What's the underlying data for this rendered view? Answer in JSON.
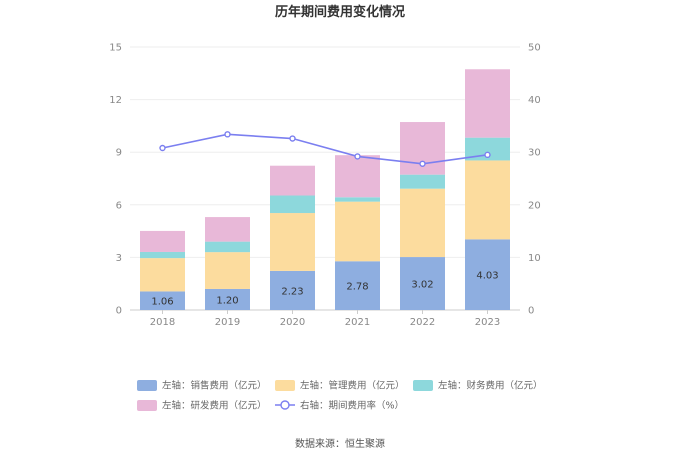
{
  "chart_data": {
    "type": "bar",
    "title": "历年期间费用变化情况",
    "categories": [
      "2018",
      "2019",
      "2020",
      "2021",
      "2022",
      "2023"
    ],
    "stacked": true,
    "left_axis": {
      "ylim": [
        0,
        15
      ],
      "ticks": [
        "0",
        "3",
        "6",
        "9",
        "12",
        "15"
      ]
    },
    "right_axis": {
      "ylim": [
        0,
        50
      ],
      "ticks": [
        "0",
        "10",
        "20",
        "30",
        "40",
        "50"
      ]
    },
    "series": [
      {
        "name": "左轴：销售费用（亿元）",
        "axis": "left",
        "kind": "bar",
        "color": "#8eaee0",
        "values": [
          1.06,
          1.2,
          2.23,
          2.78,
          3.02,
          4.03
        ],
        "labels": [
          "1.06",
          "1.20",
          "2.23",
          "2.78",
          "3.02",
          "4.03"
        ]
      },
      {
        "name": "左轴：管理费用（亿元）",
        "axis": "left",
        "kind": "bar",
        "color": "#fcdc9e",
        "values": [
          1.9,
          2.1,
          3.3,
          3.4,
          3.9,
          4.5
        ]
      },
      {
        "name": "左轴：财务费用（亿元）",
        "axis": "left",
        "kind": "bar",
        "color": "#8dd8dc",
        "values": [
          0.35,
          0.6,
          1.0,
          0.25,
          0.8,
          1.3
        ]
      },
      {
        "name": "左轴：研发费用（亿元）",
        "axis": "left",
        "kind": "bar",
        "color": "#e8b8d8",
        "values": [
          1.2,
          1.4,
          1.7,
          2.4,
          3.0,
          3.9
        ]
      },
      {
        "name": "右轴：期间费用率（%）",
        "axis": "right",
        "kind": "line",
        "color": "#7b7ff0",
        "values": [
          30.8,
          33.4,
          32.6,
          29.2,
          27.8,
          29.5
        ]
      }
    ],
    "grid": true,
    "legend_position": "bottom"
  },
  "source_text": "数据来源：恒生聚源"
}
